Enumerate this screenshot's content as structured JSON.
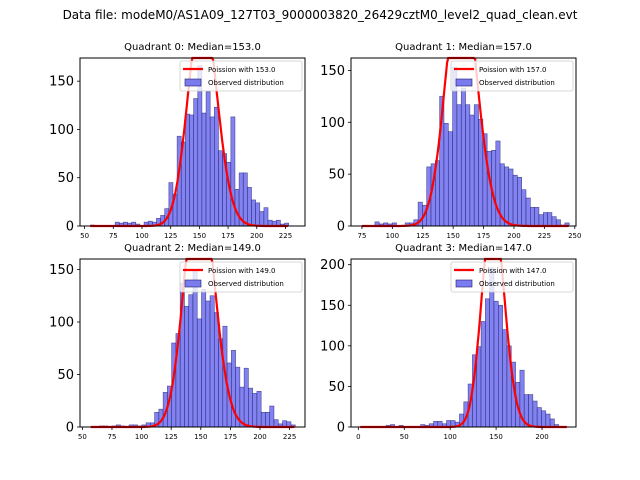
{
  "suptitle": "Data file: modeM0/AS1A09_127T03_9000003820_26429cztM0_level2_quad_clean.evt",
  "colors": {
    "bar_fill": "#7b7bf0",
    "bar_edge": "#1a1a66",
    "poisson_line": "#ff0000"
  },
  "chart_data": [
    {
      "type": "bar",
      "title": "Quadrant 0: Median=153.0",
      "legend": [
        "Poission with 153.0",
        "Observed distribution"
      ],
      "legend_position": "top-right",
      "xlabel": "",
      "ylabel": "",
      "xlim": [
        46,
        242
      ],
      "ylim": [
        0,
        174
      ],
      "xticks": [
        50,
        75,
        100,
        125,
        150,
        175,
        200,
        225
      ],
      "yticks": [
        0,
        50,
        100,
        150
      ],
      "bin_start": 55,
      "bin_width": 3.6,
      "values": [
        1,
        0,
        0,
        0,
        0,
        0,
        4,
        3,
        4,
        3,
        4,
        2,
        0,
        4,
        5,
        4,
        8,
        11,
        18,
        45,
        33,
        93,
        87,
        116,
        115,
        132,
        166,
        117,
        139,
        113,
        123,
        78,
        75,
        66,
        113,
        38,
        55,
        55,
        40,
        27,
        24,
        15,
        19,
        6,
        5,
        6,
        2,
        3
      ],
      "poisson_mean": 153.0
    },
    {
      "type": "bar",
      "title": "Quadrant 1: Median=157.0",
      "legend": [
        "Poission with 157.0",
        "Observed distribution"
      ],
      "legend_position": "top-right",
      "xlabel": "",
      "ylabel": "",
      "xlim": [
        66,
        251
      ],
      "ylim": [
        0,
        162
      ],
      "xticks": [
        75,
        100,
        125,
        150,
        175,
        200,
        225,
        250
      ],
      "yticks": [
        0,
        50,
        100,
        150
      ],
      "bin_start": 75,
      "bin_width": 3.55,
      "values": [
        0,
        0,
        0,
        4,
        2,
        3,
        2,
        3,
        0,
        0,
        3,
        3,
        6,
        23,
        20,
        57,
        60,
        63,
        125,
        99,
        91,
        153,
        117,
        133,
        117,
        107,
        117,
        103,
        89,
        72,
        73,
        82,
        60,
        57,
        55,
        49,
        47,
        35,
        27,
        18,
        18,
        11,
        13,
        13,
        9,
        6,
        1,
        3
      ],
      "poisson_mean": 157.0
    },
    {
      "type": "bar",
      "title": "Quadrant 2: Median=149.0",
      "legend": [
        "Poission with 149.0",
        "Observed distribution"
      ],
      "legend_position": "top-right",
      "xlabel": "",
      "ylabel": "",
      "xlim": [
        48,
        238
      ],
      "ylim": [
        0,
        160
      ],
      "xticks": [
        50,
        75,
        100,
        125,
        150,
        175,
        200,
        225
      ],
      "yticks": [
        0,
        50,
        100,
        150
      ],
      "bin_start": 57,
      "bin_width": 3.6,
      "values": [
        0,
        0,
        1,
        1,
        0,
        1,
        2,
        1,
        0,
        2,
        2,
        1,
        2,
        4,
        4,
        14,
        17,
        33,
        39,
        80,
        89,
        137,
        115,
        126,
        150,
        103,
        131,
        120,
        125,
        109,
        84,
        96,
        61,
        73,
        57,
        38,
        56,
        37,
        32,
        34,
        14,
        14,
        20,
        7,
        3,
        6,
        5,
        2
      ],
      "poisson_mean": 149.0
    },
    {
      "type": "bar",
      "title": "Quadrant 3: Median=147.0",
      "legend": [
        "Poission with 147.0",
        "Observed distribution"
      ],
      "legend_position": "top-right",
      "xlabel": "",
      "ylabel": "",
      "xlim": [
        -8,
        237
      ],
      "ylim": [
        0,
        207
      ],
      "xticks": [
        0,
        50,
        100,
        150,
        200
      ],
      "yticks": [
        0,
        50,
        100,
        150,
        200
      ],
      "bin_start": 2,
      "bin_width": 4.7,
      "values": [
        0,
        0,
        0,
        0,
        0,
        0,
        2,
        3,
        0,
        2,
        0,
        0,
        0,
        0,
        3,
        2,
        4,
        7,
        7,
        4,
        8,
        8,
        6,
        16,
        31,
        53,
        89,
        99,
        130,
        158,
        196,
        155,
        150,
        120,
        100,
        80,
        55,
        70,
        40,
        40,
        32,
        24,
        20,
        16,
        10,
        3,
        0,
        0
      ],
      "poisson_mean": 147.0
    }
  ]
}
